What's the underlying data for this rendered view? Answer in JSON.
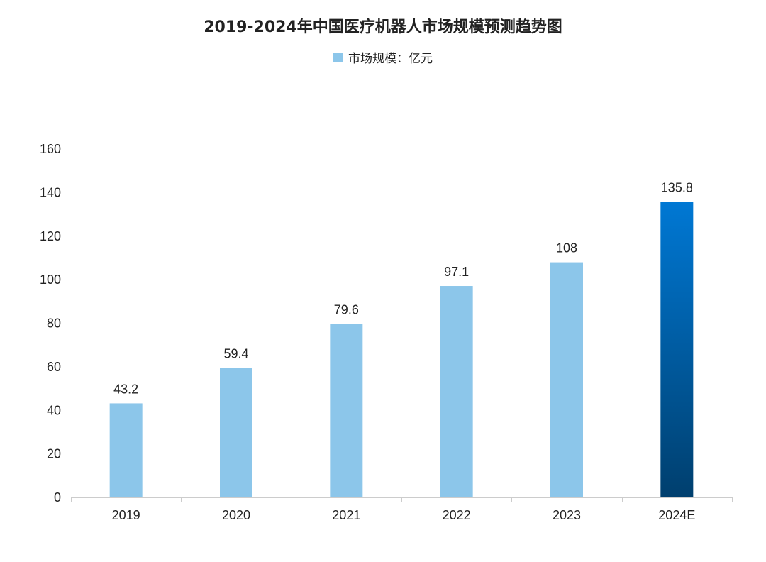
{
  "chart_data": {
    "type": "bar",
    "title": "2019-2024年中国医疗机器人市场规模预测趋势图",
    "legend": {
      "label": "市场规模：亿元",
      "position": "top"
    },
    "categories": [
      "2019",
      "2020",
      "2021",
      "2022",
      "2023",
      "2024E"
    ],
    "series": [
      {
        "name": "市场规模：亿元",
        "values": [
          43.2,
          59.4,
          79.6,
          97.1,
          108,
          135.8
        ]
      }
    ],
    "data_labels": [
      "43.2",
      "59.4",
      "79.6",
      "97.1",
      "108",
      "135.8"
    ],
    "xlabel": "",
    "ylabel": "",
    "ylim": [
      0,
      160
    ],
    "yticks": [
      0,
      20,
      40,
      60,
      80,
      100,
      120,
      140,
      160
    ],
    "grid": false,
    "colors": {
      "bar": "#8cc6ea",
      "highlight_top": "#0078d4",
      "highlight_bottom": "#003f6e",
      "axis": "#cccccc"
    }
  }
}
